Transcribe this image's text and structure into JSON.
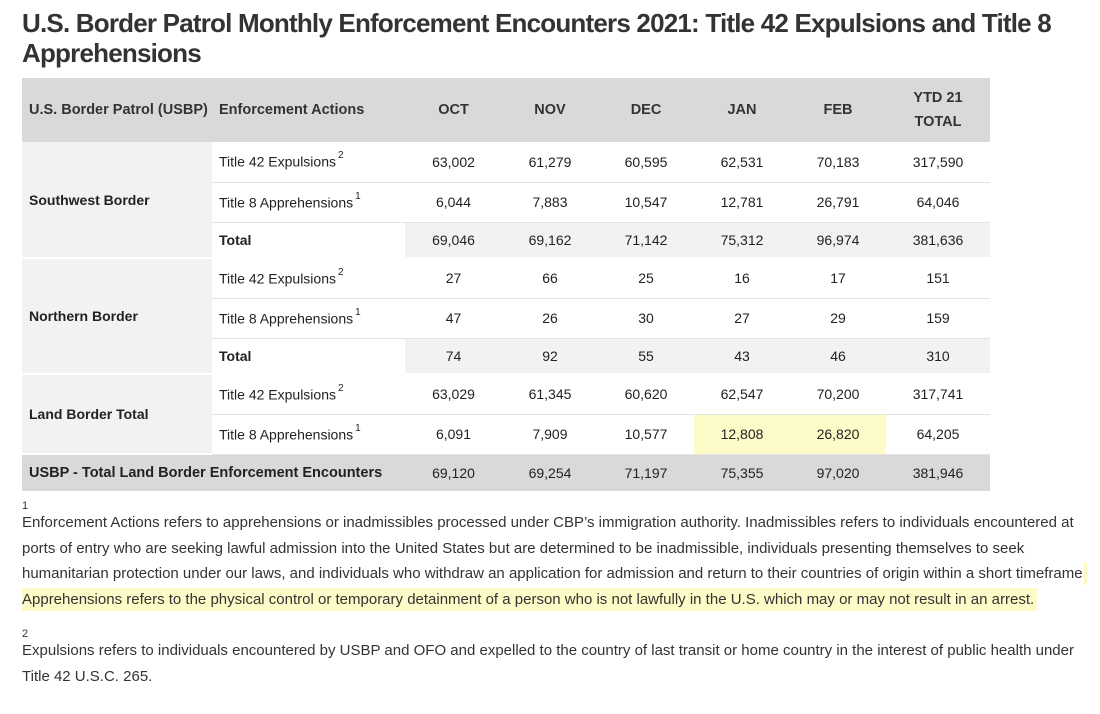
{
  "title": "U.S. Border Patrol Monthly Enforcement Encounters 2021: Title 42 Expulsions and Title 8 Apprehensions",
  "colors": {
    "header_bg": "#d9d9d9",
    "group_bg": "#f2f2f2",
    "highlight": "#fdfbc8"
  },
  "table": {
    "headers": {
      "agency": "U.S. Border Patrol (USBP)",
      "actions": "Enforcement Actions",
      "oct": "OCT",
      "nov": "NOV",
      "dec": "DEC",
      "jan": "JAN",
      "feb": "FEB",
      "ytd": "YTD 21 TOTAL"
    },
    "groups": [
      {
        "name": "Southwest Border",
        "rows": [
          {
            "action": "Title 42 Expulsions",
            "note": "2",
            "values": [
              "63,002",
              "61,279",
              "60,595",
              "62,531",
              "70,183",
              "317,590"
            ]
          },
          {
            "action": "Title 8 Apprehensions",
            "note": "1",
            "values": [
              "6,044",
              "7,883",
              "10,547",
              "12,781",
              "26,791",
              "64,046"
            ]
          },
          {
            "action": "Total",
            "note": "",
            "values": [
              "69,046",
              "69,162",
              "71,142",
              "75,312",
              "96,974",
              "381,636"
            ]
          }
        ]
      },
      {
        "name": "Northern Border",
        "rows": [
          {
            "action": "Title 42 Expulsions",
            "note": "2",
            "values": [
              "27",
              "66",
              "25",
              "16",
              "17",
              "151"
            ]
          },
          {
            "action": "Title 8 Apprehensions",
            "note": "1",
            "values": [
              "47",
              "26",
              "30",
              "27",
              "29",
              "159"
            ]
          },
          {
            "action": "Total",
            "note": "",
            "values": [
              "74",
              "92",
              "55",
              "43",
              "46",
              "310"
            ]
          }
        ]
      },
      {
        "name": "Land Border Total",
        "rows": [
          {
            "action": "Title 42 Expulsions",
            "note": "2",
            "values": [
              "63,029",
              "61,345",
              "60,620",
              "62,547",
              "70,200",
              "317,741"
            ]
          },
          {
            "action": "Title 8 Apprehensions",
            "note": "1",
            "values": [
              "6,091",
              "7,909",
              "10,577",
              "12,808",
              "26,820",
              "64,205"
            ]
          }
        ]
      }
    ],
    "grand_total": {
      "label": "USBP - Total Land Border Enforcement Encounters",
      "values": [
        "69,120",
        "69,254",
        "71,197",
        "75,355",
        "97,020",
        "381,946"
      ]
    }
  },
  "footnotes": [
    {
      "marker": "1",
      "text": "Enforcement Actions refers to apprehensions or inadmissibles processed under CBP’s immigration authority. Inadmissibles refers to individuals encountered at ports of entry who are seeking lawful admission into the United States but are determined to be inadmissible, individuals presenting themselves to seek humanitarian protection under our laws, and individuals who withdraw an application for admission and return to their countries of origin within a short timeframe.",
      "highlighted": " Apprehensions refers to the physical control or temporary detainment of a person who is not lawfully in the U.S. which may or may not result in an arrest."
    },
    {
      "marker": "2",
      "text": "Expulsions refers to individuals encountered by USBP and OFO and expelled to the country of last transit or home country in the interest of public health under Title 42 U.S.C. 265."
    }
  ]
}
